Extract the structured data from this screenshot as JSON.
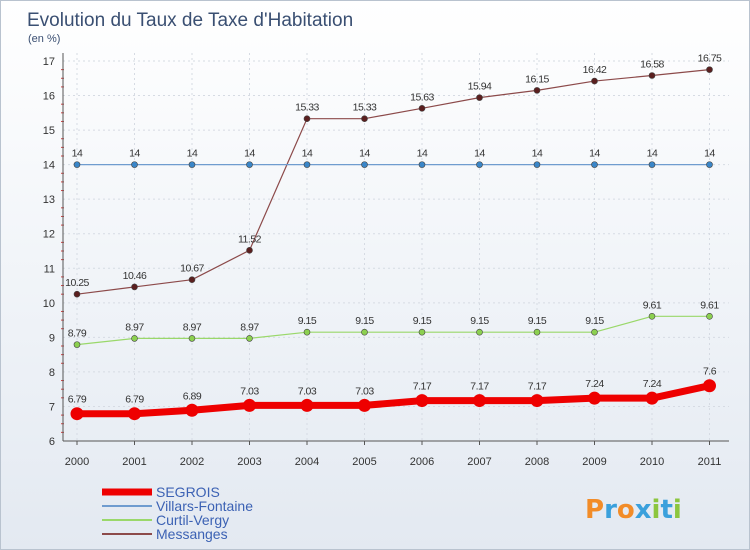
{
  "chart_data": {
    "type": "line",
    "title": "Evolution du Taux de Taxe d'Habitation",
    "subtitle": "(en %)",
    "x": [
      "2000",
      "2001",
      "2002",
      "2003",
      "2004",
      "2005",
      "2006",
      "2007",
      "2008",
      "2009",
      "2010",
      "2011"
    ],
    "ylim": [
      6,
      17
    ],
    "yticks": [
      6,
      7,
      8,
      9,
      10,
      11,
      12,
      13,
      14,
      15,
      16,
      17
    ],
    "grid": true,
    "legend_position": "bottom-left",
    "series": [
      {
        "name": "SEGROIS",
        "color": "#ee0000",
        "values": [
          6.79,
          6.79,
          6.89,
          7.03,
          7.03,
          7.03,
          7.17,
          7.17,
          7.17,
          7.24,
          7.24,
          7.6
        ],
        "labels": [
          "6.79",
          "6.79",
          "6.89",
          "7.03",
          "7.03",
          "7.03",
          "7.17",
          "7.17",
          "7.17",
          "7.24",
          "7.24",
          "7.6"
        ]
      },
      {
        "name": "Villars-Fontaine",
        "color": "#6f9ccf",
        "values": [
          14,
          14,
          14,
          14,
          14,
          14,
          14,
          14,
          14,
          14,
          14,
          14
        ],
        "labels": [
          "14",
          "14",
          "14",
          "14",
          "14",
          "14",
          "14",
          "14",
          "14",
          "14",
          "14",
          "14"
        ]
      },
      {
        "name": "Curtil-Vergy",
        "color": "#9ad86a",
        "values": [
          8.79,
          8.97,
          8.97,
          8.97,
          9.15,
          9.15,
          9.15,
          9.15,
          9.15,
          9.15,
          9.61,
          9.61
        ],
        "labels": [
          "8.79",
          "8.97",
          "8.97",
          "8.97",
          "9.15",
          "9.15",
          "9.15",
          "9.15",
          "9.15",
          "9.15",
          "9.61",
          "9.61"
        ]
      },
      {
        "name": "Messanges",
        "color": "#8c4a4a",
        "values": [
          10.25,
          10.46,
          10.67,
          11.52,
          15.33,
          15.33,
          15.63,
          15.94,
          16.15,
          16.42,
          16.58,
          16.75
        ],
        "labels": [
          "10.25",
          "10.46",
          "10.67",
          "11.52",
          "15.33",
          "15.33",
          "15.63",
          "15.94",
          "16.15",
          "16.42",
          "16.58",
          "16.75"
        ]
      }
    ]
  },
  "brand": {
    "letters": [
      "P",
      "r",
      "o",
      "x",
      "i",
      "t",
      "i"
    ],
    "colors": [
      "#f28c28",
      "#3aa0dc",
      "#f28c28",
      "#3aa0dc",
      "#8cc63f",
      "#3aa0dc",
      "#8cc63f"
    ]
  }
}
